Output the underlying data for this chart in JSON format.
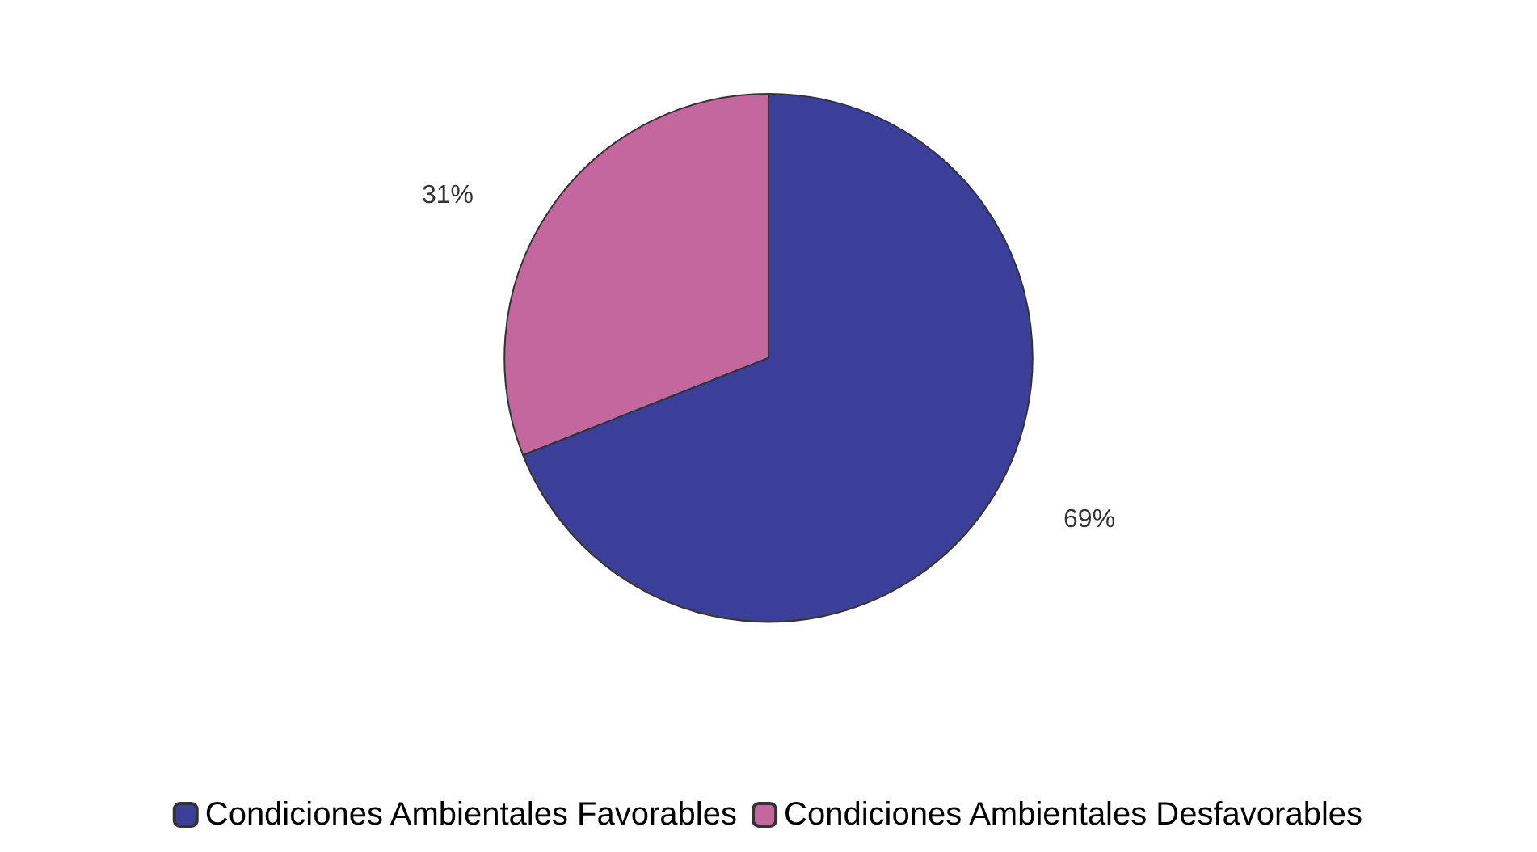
{
  "chart_data": {
    "type": "pie",
    "categories": [
      "Condiciones Ambientales Favorables",
      "Condiciones Ambientales Desfavorables"
    ],
    "values": [
      69,
      31
    ],
    "colors": [
      "#3b3f9a",
      "#c4679f"
    ],
    "value_labels": [
      "69%",
      "31%"
    ],
    "legend": "bottom"
  }
}
